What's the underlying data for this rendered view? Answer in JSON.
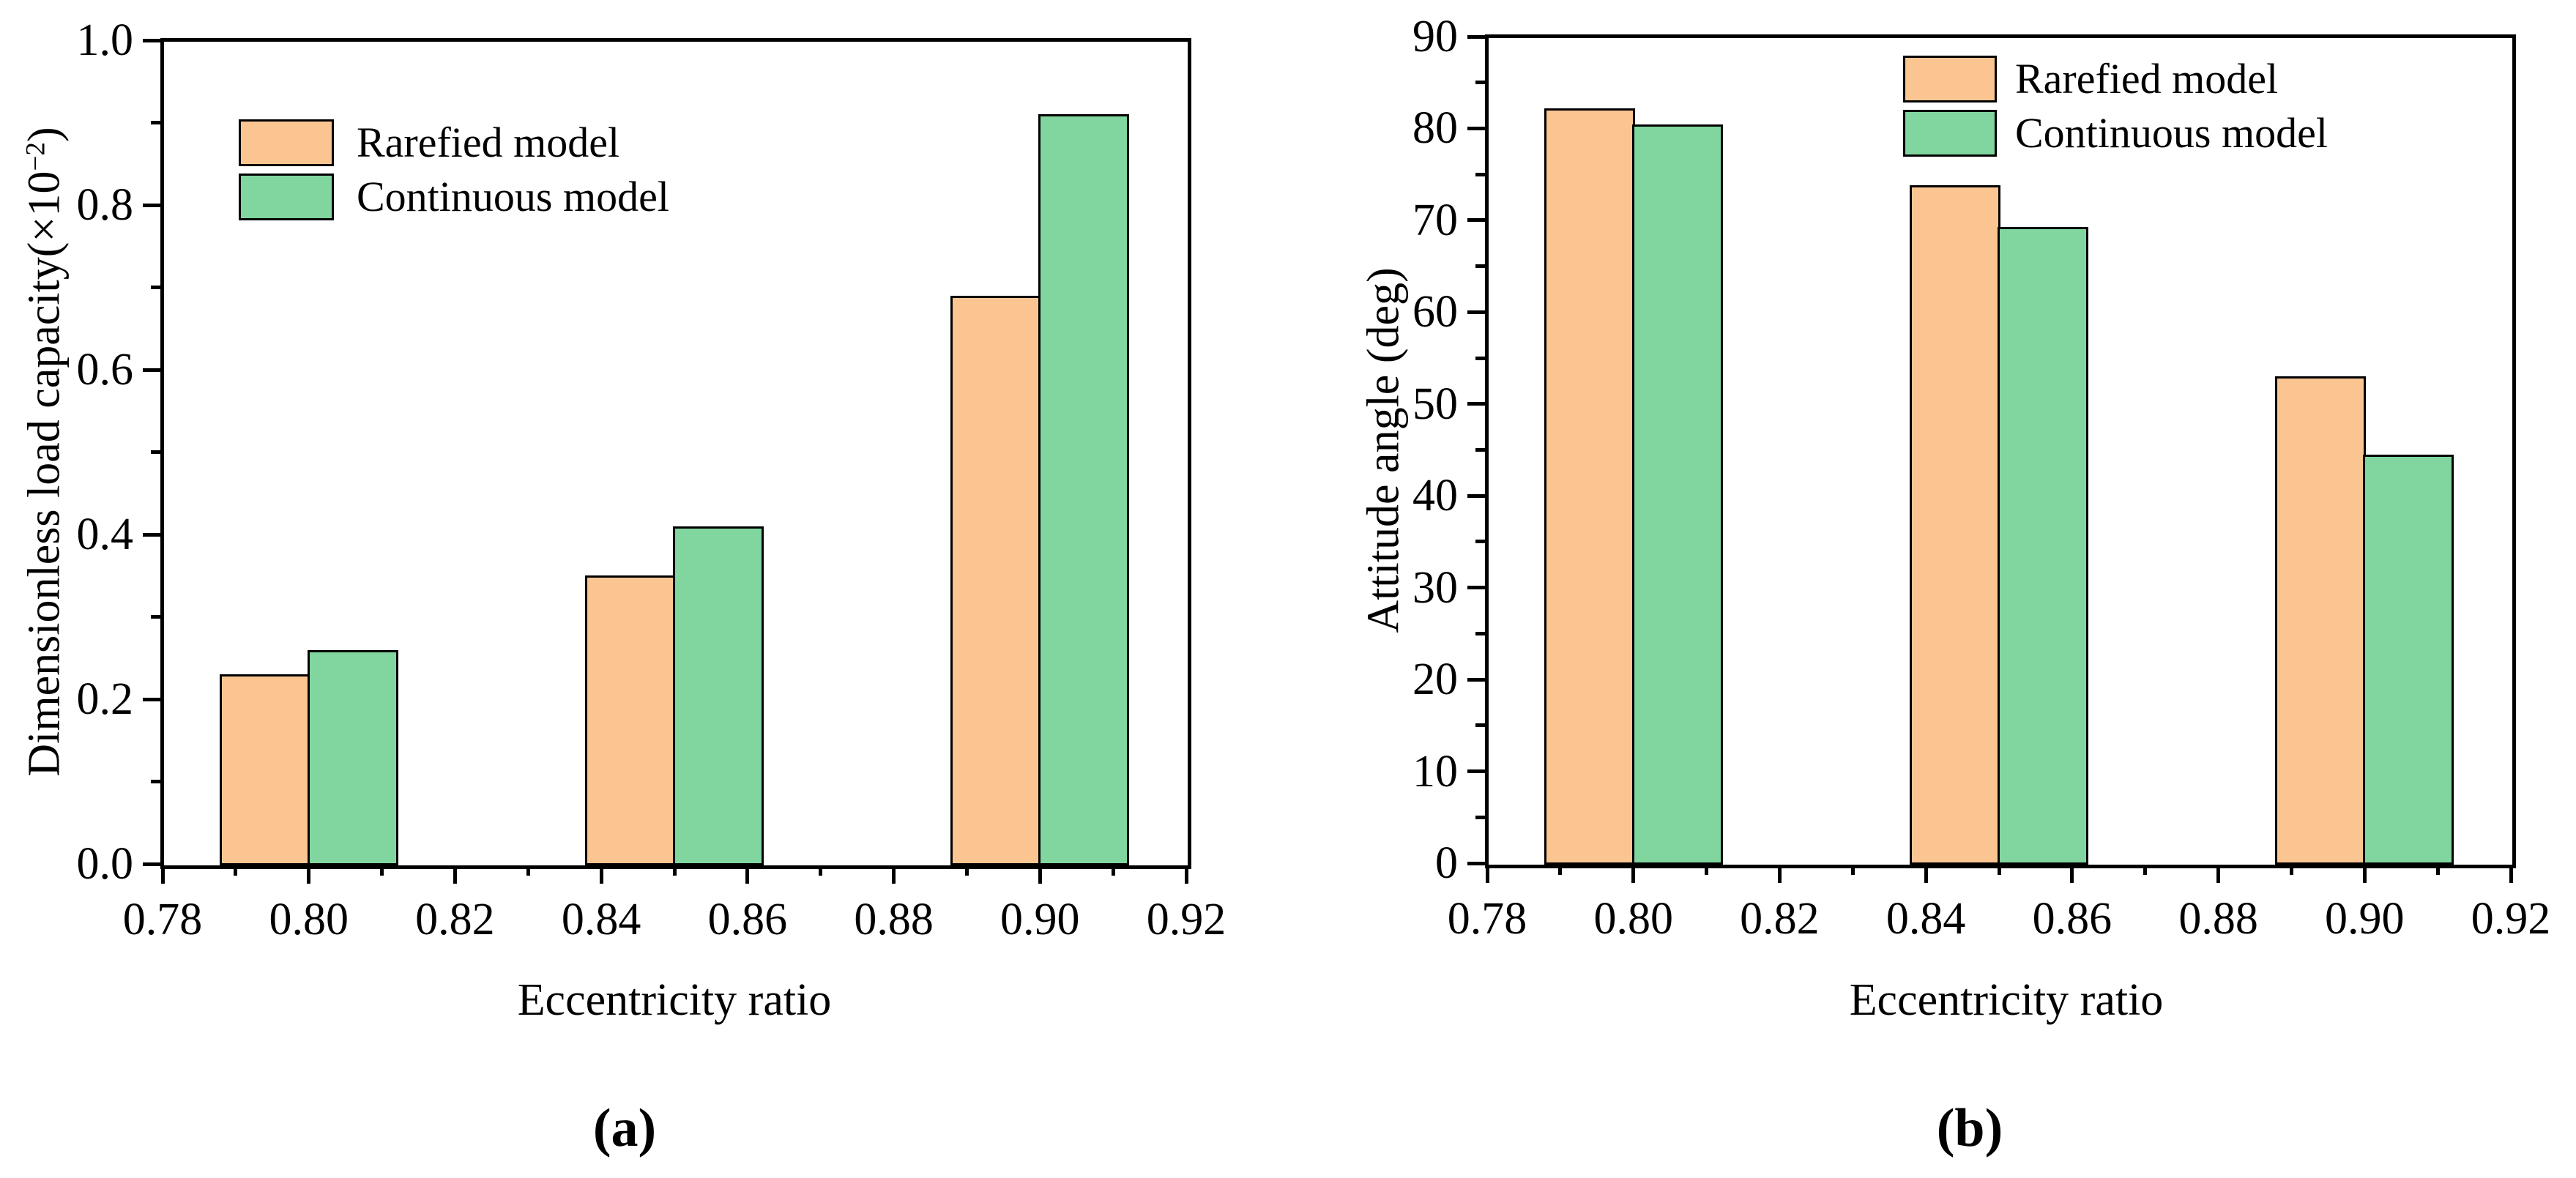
{
  "figure_type": "two-panel bar chart figure",
  "colors": {
    "background": "#FFFFFF",
    "axis": "#000000",
    "bar_edge": "#000000",
    "rarefied_fill": "#FBC592",
    "continuous_fill": "#80D69E"
  },
  "legend": {
    "items": [
      "Rarefied model",
      "Continuous model"
    ]
  },
  "chart_data": [
    {
      "type": "bar",
      "panel": "(a)",
      "title": "(a)",
      "xlabel": "Eccentricity ratio",
      "ylabel": "Dimensionless load capacity(×10⁻²)",
      "ylabel_parts": {
        "pre": "Dimensionless load capacity(×10",
        "sup": "−2",
        "post": ")"
      },
      "categories": [
        0.8,
        0.85,
        0.9
      ],
      "series": [
        {
          "name": "Rarefied model",
          "color": "#FBC592",
          "values": [
            0.23,
            0.35,
            0.69
          ]
        },
        {
          "name": "Continuous model",
          "color": "#80D69E",
          "values": [
            0.26,
            0.41,
            0.91
          ]
        }
      ],
      "xlim": [
        0.78,
        0.92
      ],
      "ylim": [
        0,
        1.0
      ],
      "x_major_step": 0.02,
      "x_minor_step": 0.01,
      "x_decimals": 2,
      "y_major_step": 0.2,
      "y_minor_step": 0.1,
      "y_decimals": 1,
      "grid": false,
      "legend_position": "upper-left",
      "x_tick_labels": [
        "0.78",
        "0.80",
        "0.82",
        "0.84",
        "0.86",
        "0.88",
        "0.90",
        "0.92"
      ],
      "y_tick_labels": [
        "0.0",
        "0.2",
        "0.4",
        "0.6",
        "0.8",
        "1.0"
      ]
    },
    {
      "type": "bar",
      "panel": "(b)",
      "title": "(b)",
      "xlabel": "Eccentricity ratio",
      "ylabel": "Attitude angle (deg)",
      "ylabel_parts": {
        "pre": "Attitude angle (deg)",
        "sup": "",
        "post": ""
      },
      "categories": [
        0.8,
        0.85,
        0.9
      ],
      "series": [
        {
          "name": "Rarefied model",
          "color": "#FBC592",
          "values": [
            82.2,
            73.8,
            53.0
          ]
        },
        {
          "name": "Continuous model",
          "color": "#80D69E",
          "values": [
            80.4,
            69.3,
            44.5
          ]
        }
      ],
      "xlim": [
        0.78,
        0.92
      ],
      "ylim": [
        0,
        90
      ],
      "x_major_step": 0.02,
      "x_minor_step": 0.01,
      "x_decimals": 2,
      "y_major_step": 10,
      "y_minor_step": 5,
      "y_decimals": 0,
      "grid": false,
      "legend_position": "upper-center",
      "x_tick_labels": [
        "0.78",
        "0.80",
        "0.82",
        "0.84",
        "0.86",
        "0.88",
        "0.90",
        "0.92"
      ],
      "y_tick_labels": [
        "0",
        "10",
        "20",
        "30",
        "40",
        "50",
        "60",
        "70",
        "80",
        "90"
      ]
    }
  ]
}
